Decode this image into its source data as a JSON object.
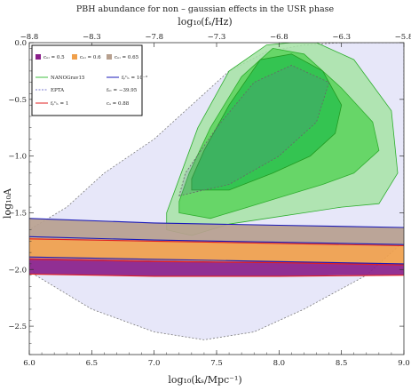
{
  "chart_data": {
    "type": "area",
    "title": "PBH abundance for non – gaussian effects in the USR phase",
    "xlabel": "log₁₀(kₛ/Mpc⁻¹)",
    "ylabel": "log₁₀A",
    "x2label": "log₁₀(fₛ/Hz)",
    "xlim": [
      6.0,
      9.0
    ],
    "ylim": [
      -2.75,
      0.0
    ],
    "xticks": [
      6.0,
      6.5,
      7.0,
      7.5,
      8.0,
      8.5,
      9.0
    ],
    "xtick_labels": [
      "6.0",
      "6.5",
      "7.0",
      "7.5",
      "8.0",
      "8.5",
      "9.0"
    ],
    "yticks": [
      0.0,
      -0.5,
      -1.0,
      -1.5,
      -2.0,
      -2.5
    ],
    "ytick_labels": [
      "0.0",
      "−0.5",
      "−1.0",
      "−1.5",
      "−2.0",
      "−2.5"
    ],
    "x2ticks": [
      -8.8,
      -8.3,
      -7.8,
      -7.3,
      -6.8,
      -6.3,
      -5.8
    ],
    "x2tick_labels": [
      "−8.8",
      "−8.3",
      "−7.8",
      "−7.3",
      "−6.8",
      "−6.3",
      "−5.8"
    ],
    "legend_position": "top-left",
    "legend": [
      {
        "label": "cₙₗ = 0.5",
        "color": "#8a1f8a",
        "kind": "swatch"
      },
      {
        "label": "cₙₗ = 0.6",
        "color": "#f0a04b",
        "kind": "swatch"
      },
      {
        "label": "cₙₗ = 0.65",
        "color": "#b7a08f",
        "kind": "swatch"
      },
      {
        "label": "NANOGrav15",
        "color": "#3fbf3f",
        "kind": "line"
      },
      {
        "label": "fₚᵇₕ = 10⁻³",
        "color": "#1a1ab8",
        "kind": "line"
      },
      {
        "label": "EPTA",
        "color": "#7a7acc",
        "kind": "dash"
      },
      {
        "label": "fₙₗ = −39.95",
        "color": "#222222",
        "kind": "none"
      },
      {
        "label": "fₚᵇₕ = 1",
        "color": "#e02020",
        "kind": "line"
      },
      {
        "label": "cₛ = 0.88",
        "color": "#222222",
        "kind": "none"
      }
    ],
    "series": [
      {
        "name": "cₙₗ = 0.65",
        "color": "#b7a08f",
        "x": [
          6.0,
          6.5,
          7.0,
          7.5,
          8.0,
          8.5,
          9.0
        ],
        "upper": [
          -1.55,
          -1.57,
          -1.59,
          -1.6,
          -1.61,
          -1.62,
          -1.63
        ],
        "lower": [
          -1.72,
          -1.74,
          -1.75,
          -1.76,
          -1.77,
          -1.78,
          -1.79
        ]
      },
      {
        "name": "cₙₗ = 0.6",
        "color": "#f0a04b",
        "x": [
          6.0,
          6.5,
          7.0,
          7.5,
          8.0,
          8.5,
          9.0
        ],
        "upper": [
          -1.72,
          -1.74,
          -1.75,
          -1.76,
          -1.77,
          -1.78,
          -1.79
        ],
        "lower": [
          -1.9,
          -1.91,
          -1.92,
          -1.93,
          -1.93,
          -1.94,
          -1.95
        ]
      },
      {
        "name": "cₙₗ = 0.5",
        "color": "#8a1f8a",
        "x": [
          6.0,
          6.5,
          7.0,
          7.5,
          8.0,
          8.5,
          9.0
        ],
        "upper": [
          -1.9,
          -1.91,
          -1.92,
          -1.93,
          -1.93,
          -1.94,
          -1.95
        ],
        "lower": [
          -2.04,
          -2.05,
          -2.06,
          -2.06,
          -2.06,
          -2.05,
          -2.05
        ]
      }
    ],
    "lines": [
      {
        "name": "fₚᵇₕ = 10⁻³",
        "color": "#1a1ab8",
        "x": [
          6.0,
          7.0,
          8.0,
          9.0
        ],
        "y": [
          -1.55,
          -1.59,
          -1.61,
          -1.63
        ]
      },
      {
        "name": "fₚᵇₕ = 10⁻³",
        "color": "#1a1ab8",
        "x": [
          6.0,
          7.0,
          8.0,
          9.0
        ],
        "y": [
          -1.71,
          -1.74,
          -1.76,
          -1.78
        ]
      },
      {
        "name": "fₚᵇₕ = 10⁻³",
        "color": "#1a1ab8",
        "x": [
          6.0,
          7.0,
          8.0,
          9.0
        ],
        "y": [
          -1.89,
          -1.91,
          -1.93,
          -1.95
        ]
      },
      {
        "name": "fₚᵇₕ = 1",
        "color": "#e02020",
        "x": [
          6.0,
          7.0,
          8.0,
          9.0
        ],
        "y": [
          -1.73,
          -1.75,
          -1.77,
          -1.79
        ]
      },
      {
        "name": "fₚᵇₕ = 1",
        "color": "#e02020",
        "x": [
          6.0,
          7.0,
          8.0,
          9.0
        ],
        "y": [
          -1.91,
          -1.93,
          -1.94,
          -1.96
        ]
      },
      {
        "name": "fₚᵇₕ = 1",
        "color": "#e02020",
        "x": [
          6.0,
          7.0,
          8.0,
          9.0
        ],
        "y": [
          -2.04,
          -2.06,
          -2.06,
          -2.05
        ]
      }
    ],
    "contours": [
      {
        "name": "EPTA",
        "color": "#c9c9f2",
        "opacity": 0.45,
        "outline": "#7a7a7a",
        "dashed": true,
        "x": [
          6.05,
          6.5,
          7.0,
          7.4,
          7.8,
          8.2,
          8.7,
          9.0,
          9.0,
          8.8,
          8.5,
          8.2,
          7.9,
          7.6,
          7.3,
          7.0,
          6.6,
          6.3,
          6.0,
          6.0
        ],
        "y": [
          -2.05,
          -2.35,
          -2.55,
          -2.62,
          -2.55,
          -2.35,
          -2.05,
          -1.75,
          0.0,
          0.0,
          0.0,
          -0.02,
          -0.08,
          -0.25,
          -0.55,
          -0.85,
          -1.15,
          -1.45,
          -1.65,
          -1.95
        ]
      },
      {
        "name": "NANOGrav15",
        "color": "#a6e3a6",
        "opacity": 0.85,
        "outline": "#2fae2f",
        "dashed": false,
        "x": [
          7.1,
          7.3,
          7.6,
          7.9,
          8.2,
          8.5,
          8.8,
          8.95,
          8.9,
          8.6,
          8.3,
          8.1,
          7.9,
          7.6,
          7.35,
          7.2,
          7.1
        ],
        "y": [
          -1.65,
          -1.7,
          -1.6,
          -1.55,
          -1.5,
          -1.45,
          -1.42,
          -1.15,
          -0.6,
          -0.15,
          0.0,
          0.0,
          -0.02,
          -0.25,
          -0.75,
          -1.2,
          -1.5
        ]
      },
      {
        "name": "NANOGrav15",
        "color": "#5fd45f",
        "opacity": 0.9,
        "outline": "#2fae2f",
        "dashed": false,
        "x": [
          7.2,
          7.45,
          7.75,
          8.05,
          8.35,
          8.6,
          8.8,
          8.75,
          8.5,
          8.2,
          7.95,
          7.7,
          7.45,
          7.28,
          7.2
        ],
        "y": [
          -1.5,
          -1.55,
          -1.45,
          -1.35,
          -1.25,
          -1.15,
          -0.95,
          -0.7,
          -0.4,
          -0.1,
          -0.05,
          -0.3,
          -0.75,
          -1.15,
          -1.4
        ]
      },
      {
        "name": "NANOGrav15",
        "color": "#2fc24f",
        "opacity": 0.9,
        "outline": "#229a22",
        "dashed": false,
        "x": [
          7.3,
          7.6,
          7.95,
          8.25,
          8.45,
          8.5,
          8.35,
          8.1,
          7.85,
          7.6,
          7.4,
          7.3
        ],
        "y": [
          -1.3,
          -1.3,
          -1.15,
          -1.0,
          -0.8,
          -0.55,
          -0.25,
          -0.1,
          -0.15,
          -0.55,
          -0.95,
          -1.2
        ]
      },
      {
        "name": "EPTA",
        "color": "#6a6aa8",
        "opacity": 0.18,
        "outline": "#666666",
        "dashed": true,
        "x": [
          7.2,
          7.6,
          8.0,
          8.3,
          8.4,
          8.1,
          7.8,
          7.5,
          7.25,
          7.2
        ],
        "y": [
          -1.35,
          -1.25,
          -1.0,
          -0.7,
          -0.35,
          -0.2,
          -0.35,
          -0.75,
          -1.15,
          -1.35
        ]
      }
    ]
  }
}
